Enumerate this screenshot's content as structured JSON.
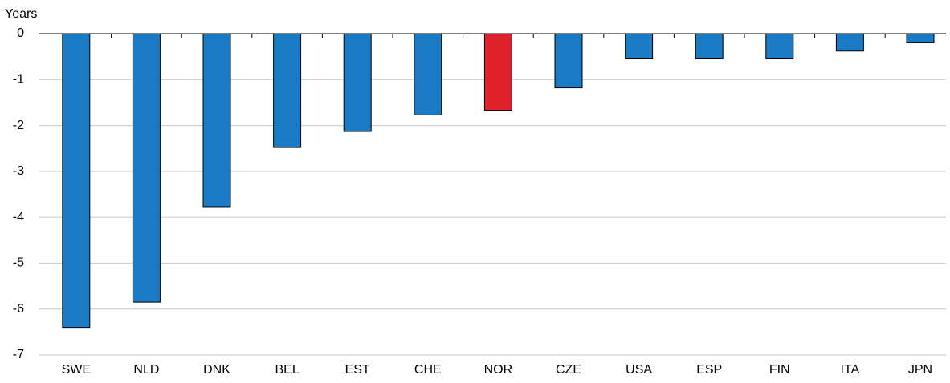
{
  "chart_data": {
    "type": "bar",
    "y_label": "Years",
    "categories": [
      "SWE",
      "NLD",
      "DNK",
      "BEL",
      "EST",
      "CHE",
      "NOR",
      "CZE",
      "USA",
      "ESP",
      "FIN",
      "ITA",
      "JPN"
    ],
    "values": [
      -6.4,
      -5.85,
      -3.77,
      -2.48,
      -2.13,
      -1.77,
      -1.67,
      -1.18,
      -0.55,
      -0.55,
      -0.55,
      -0.38,
      -0.2
    ],
    "colors": [
      "#1a7bc4",
      "#1a7bc4",
      "#1a7bc4",
      "#1a7bc4",
      "#1a7bc4",
      "#1a7bc4",
      "#e0202a",
      "#1a7bc4",
      "#1a7bc4",
      "#1a7bc4",
      "#1a7bc4",
      "#1a7bc4",
      "#1a7bc4"
    ],
    "ylim": [
      -7,
      0
    ],
    "yticks": [
      0,
      -1,
      -2,
      -3,
      -4,
      -5,
      -6,
      -7
    ],
    "grid": true
  }
}
